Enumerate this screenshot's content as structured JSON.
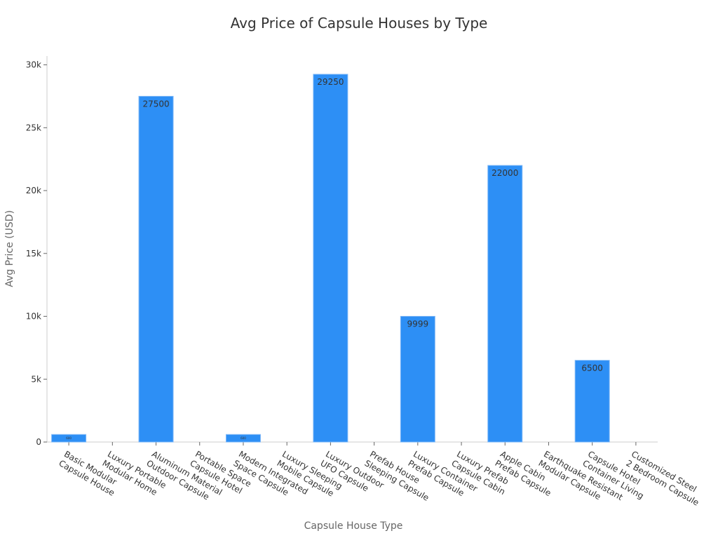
{
  "chart_data": {
    "type": "bar",
    "title": "Avg Price of Capsule Houses by Type",
    "x_label": "Capsule House Type",
    "y_label": "Avg Price (USD)",
    "categories": [
      "Basic Modular\nCapsule House",
      "Luxury Portable\nModular Home",
      "Aluminum Material\nOutdoor Capsule",
      "Portable Space\nCapsule Hotel",
      "Modern Integrated\nSpace Capsule",
      "Luxury Sleeping\nMobile Capsule",
      "Luxury Outdoor\nUFO Capsule",
      "Prefab House\nSleeping Capsule",
      "Luxury Container\nPrefab Capsule",
      "Luxury Prefab\nCapsule Cabin",
      "Apple Cabin\nPrefab Capsule",
      "Earthquake Resistant\nModular Capsule",
      "Capsule Hotel\nContainer Living",
      "Customized Steel\n2 Bedroom Capsule"
    ],
    "values": [
      600,
      null,
      27500,
      null,
      600,
      null,
      29250,
      null,
      9999,
      null,
      22000,
      null,
      6500,
      null
    ],
    "color": "#2d8ff5",
    "ylim": [
      0,
      30700
    ],
    "yticks": [
      0,
      {
        "value": 5000,
        "label": "5k"
      },
      {
        "value": 10000,
        "label": "10k"
      },
      {
        "value": 15000,
        "label": "15k"
      },
      {
        "value": 20000,
        "label": "20k"
      },
      {
        "value": 25000,
        "label": "25k"
      },
      {
        "value": 30000,
        "label": "30k"
      }
    ]
  }
}
